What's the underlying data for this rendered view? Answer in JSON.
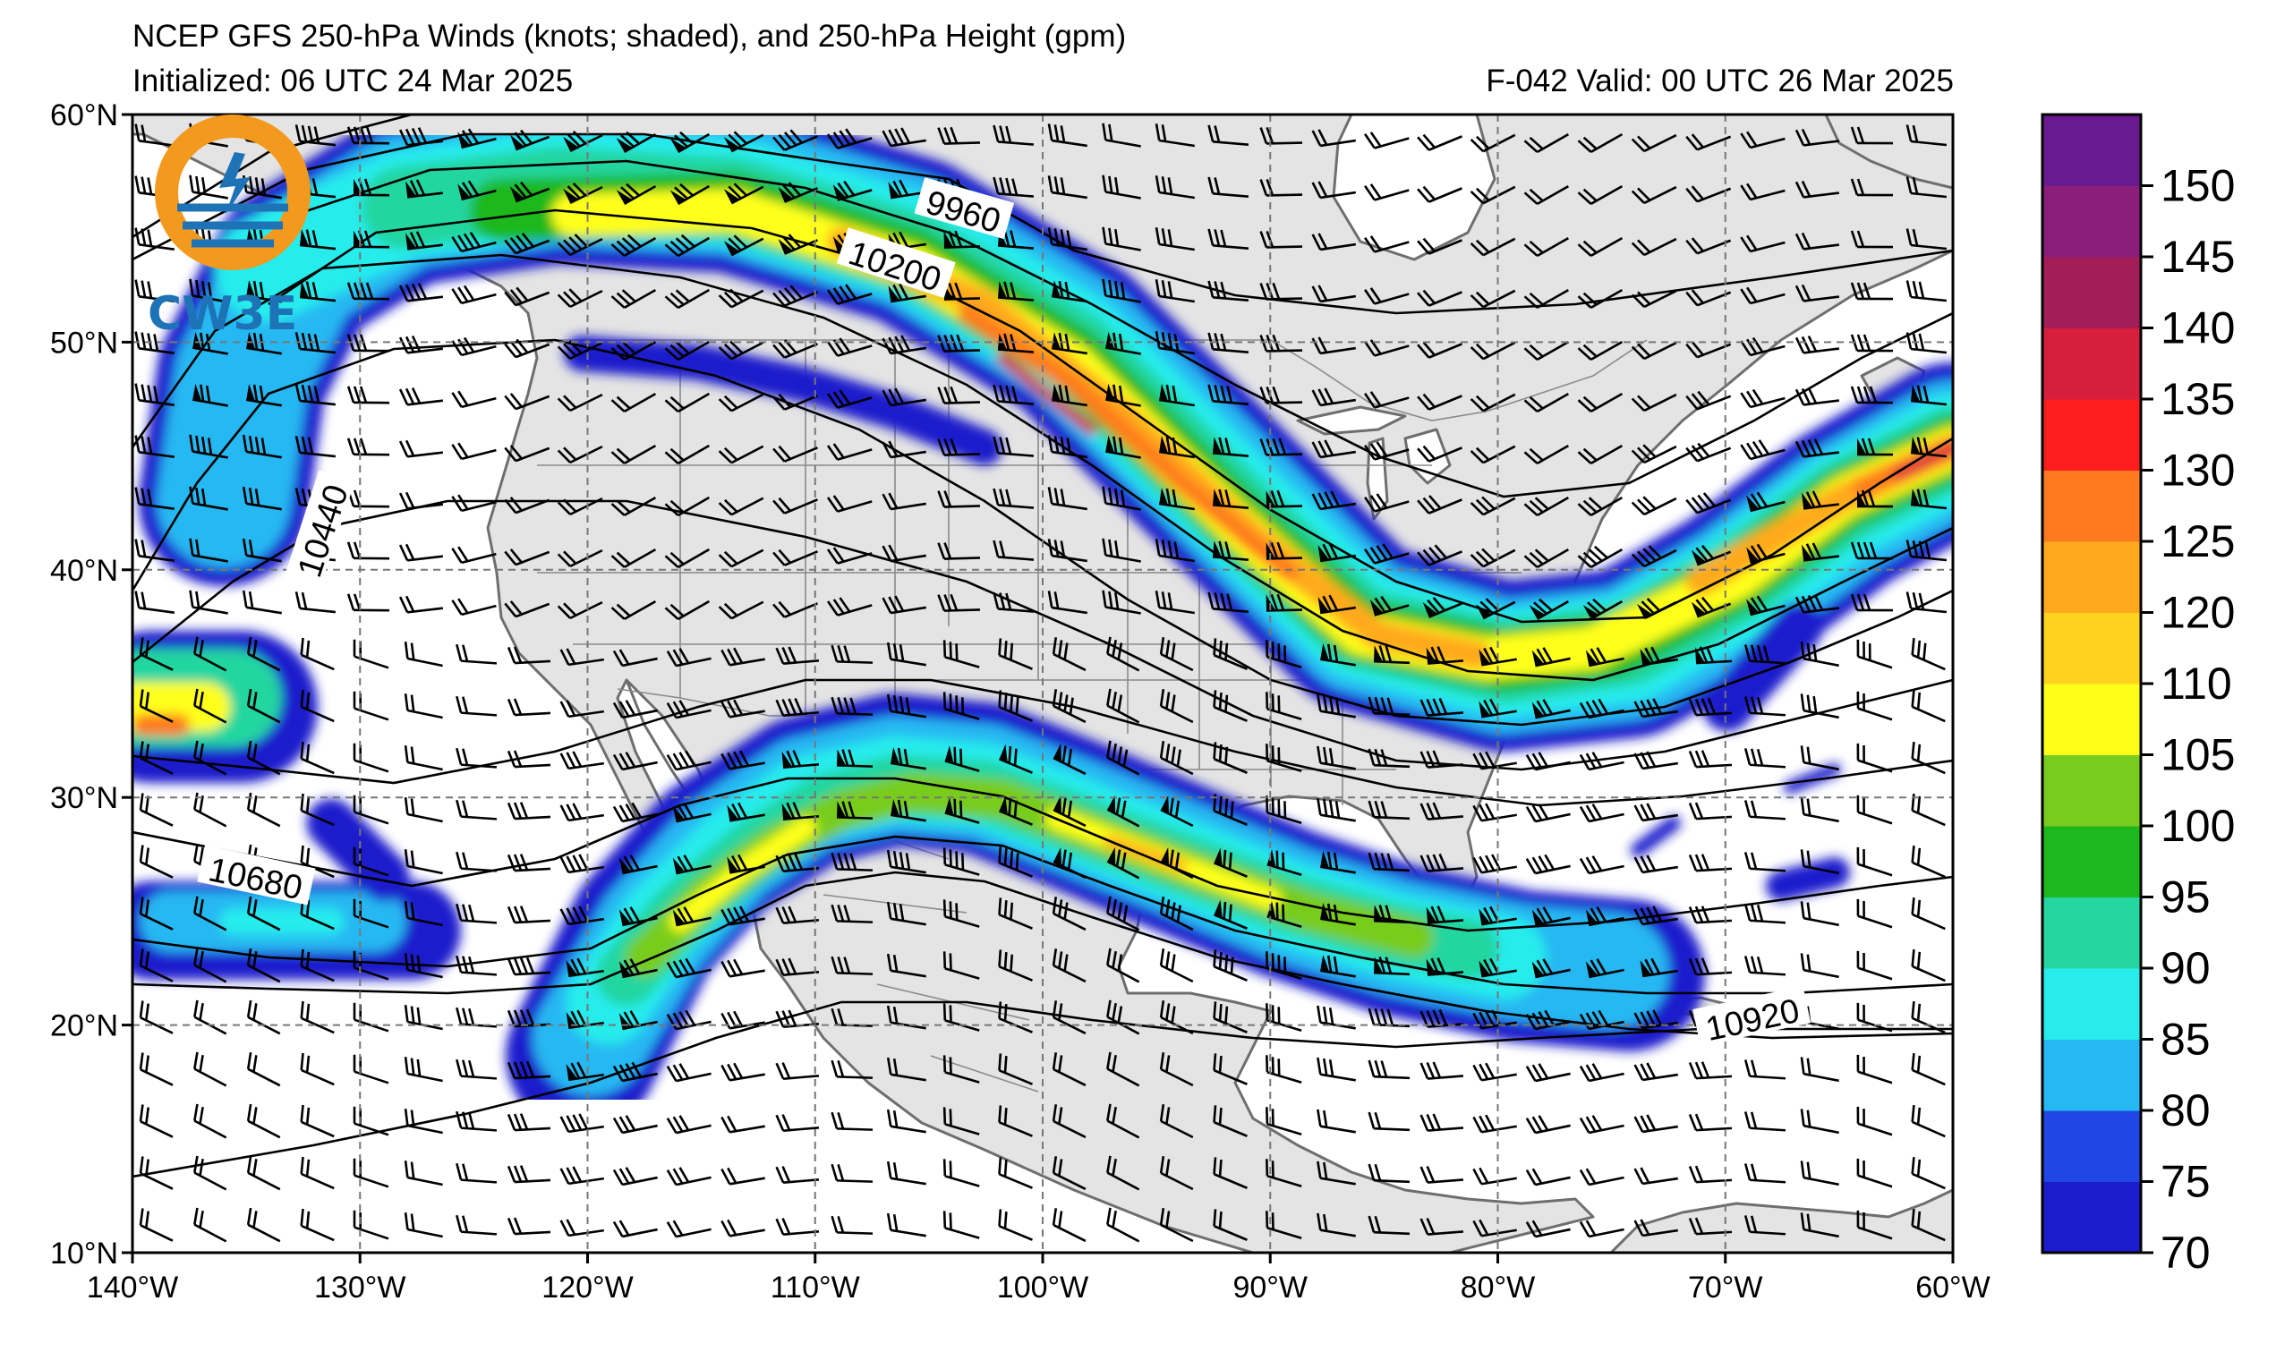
{
  "header": {
    "title_line1": "NCEP GFS 250-hPa Winds (knots; shaded), and 250-hPa Height (gpm)",
    "title_line2_left": "Initialized: 06 UTC 24 Mar 2025",
    "title_line2_right": "F-042  Valid: 00 UTC 26 Mar 2025"
  },
  "logo": {
    "text": "CW3E"
  },
  "map": {
    "lon_range": [
      -140,
      -60
    ],
    "lat_range": [
      10,
      60
    ],
    "lon_ticks": [
      {
        "value": -140,
        "label": "140°W"
      },
      {
        "value": -130,
        "label": "130°W"
      },
      {
        "value": -120,
        "label": "120°W"
      },
      {
        "value": -110,
        "label": "110°W"
      },
      {
        "value": -100,
        "label": "100°W"
      },
      {
        "value": -90,
        "label": "90°W"
      },
      {
        "value": -80,
        "label": "80°W"
      },
      {
        "value": -70,
        "label": "70°W"
      },
      {
        "value": -60,
        "label": "60°W"
      }
    ],
    "lat_ticks": [
      {
        "value": 10,
        "label": "10°N"
      },
      {
        "value": 20,
        "label": "20°N"
      },
      {
        "value": 30,
        "label": "30°N"
      },
      {
        "value": 40,
        "label": "40°N"
      },
      {
        "value": 50,
        "label": "50°N"
      },
      {
        "value": 60,
        "label": "60°N"
      }
    ],
    "contour_labels": [
      {
        "text": "9960",
        "lon": -103.5,
        "lat": 55.7,
        "angle": 16
      },
      {
        "text": "10200",
        "lon": -106.5,
        "lat": 53.3,
        "angle": 18
      },
      {
        "text": "10440",
        "lon": -131.6,
        "lat": 41.7,
        "angle": -72
      },
      {
        "text": "10680",
        "lon": -134.6,
        "lat": 26.4,
        "angle": 12
      },
      {
        "text": "10920",
        "lon": -68.8,
        "lat": 20.2,
        "angle": -12
      }
    ]
  },
  "colorbar": {
    "levels": [
      70,
      75,
      80,
      85,
      90,
      95,
      100,
      105,
      110,
      120,
      125,
      130,
      135,
      140,
      145,
      150,
      155
    ],
    "colors": [
      "#1c1ccc",
      "#2046e6",
      "#26b8f2",
      "#28ecec",
      "#24d6a0",
      "#1db81d",
      "#78cc1e",
      "#ffff1a",
      "#ffd21e",
      "#ffaa1e",
      "#ff7a1e",
      "#ff1e1e",
      "#d71e3c",
      "#a31e56",
      "#8a1e7a",
      "#6a1a90"
    ],
    "labels": [
      "70",
      "75",
      "80",
      "85",
      "90",
      "95",
      "100",
      "105",
      "110",
      "120",
      "125",
      "130",
      "135",
      "140",
      "145",
      "150"
    ]
  }
}
